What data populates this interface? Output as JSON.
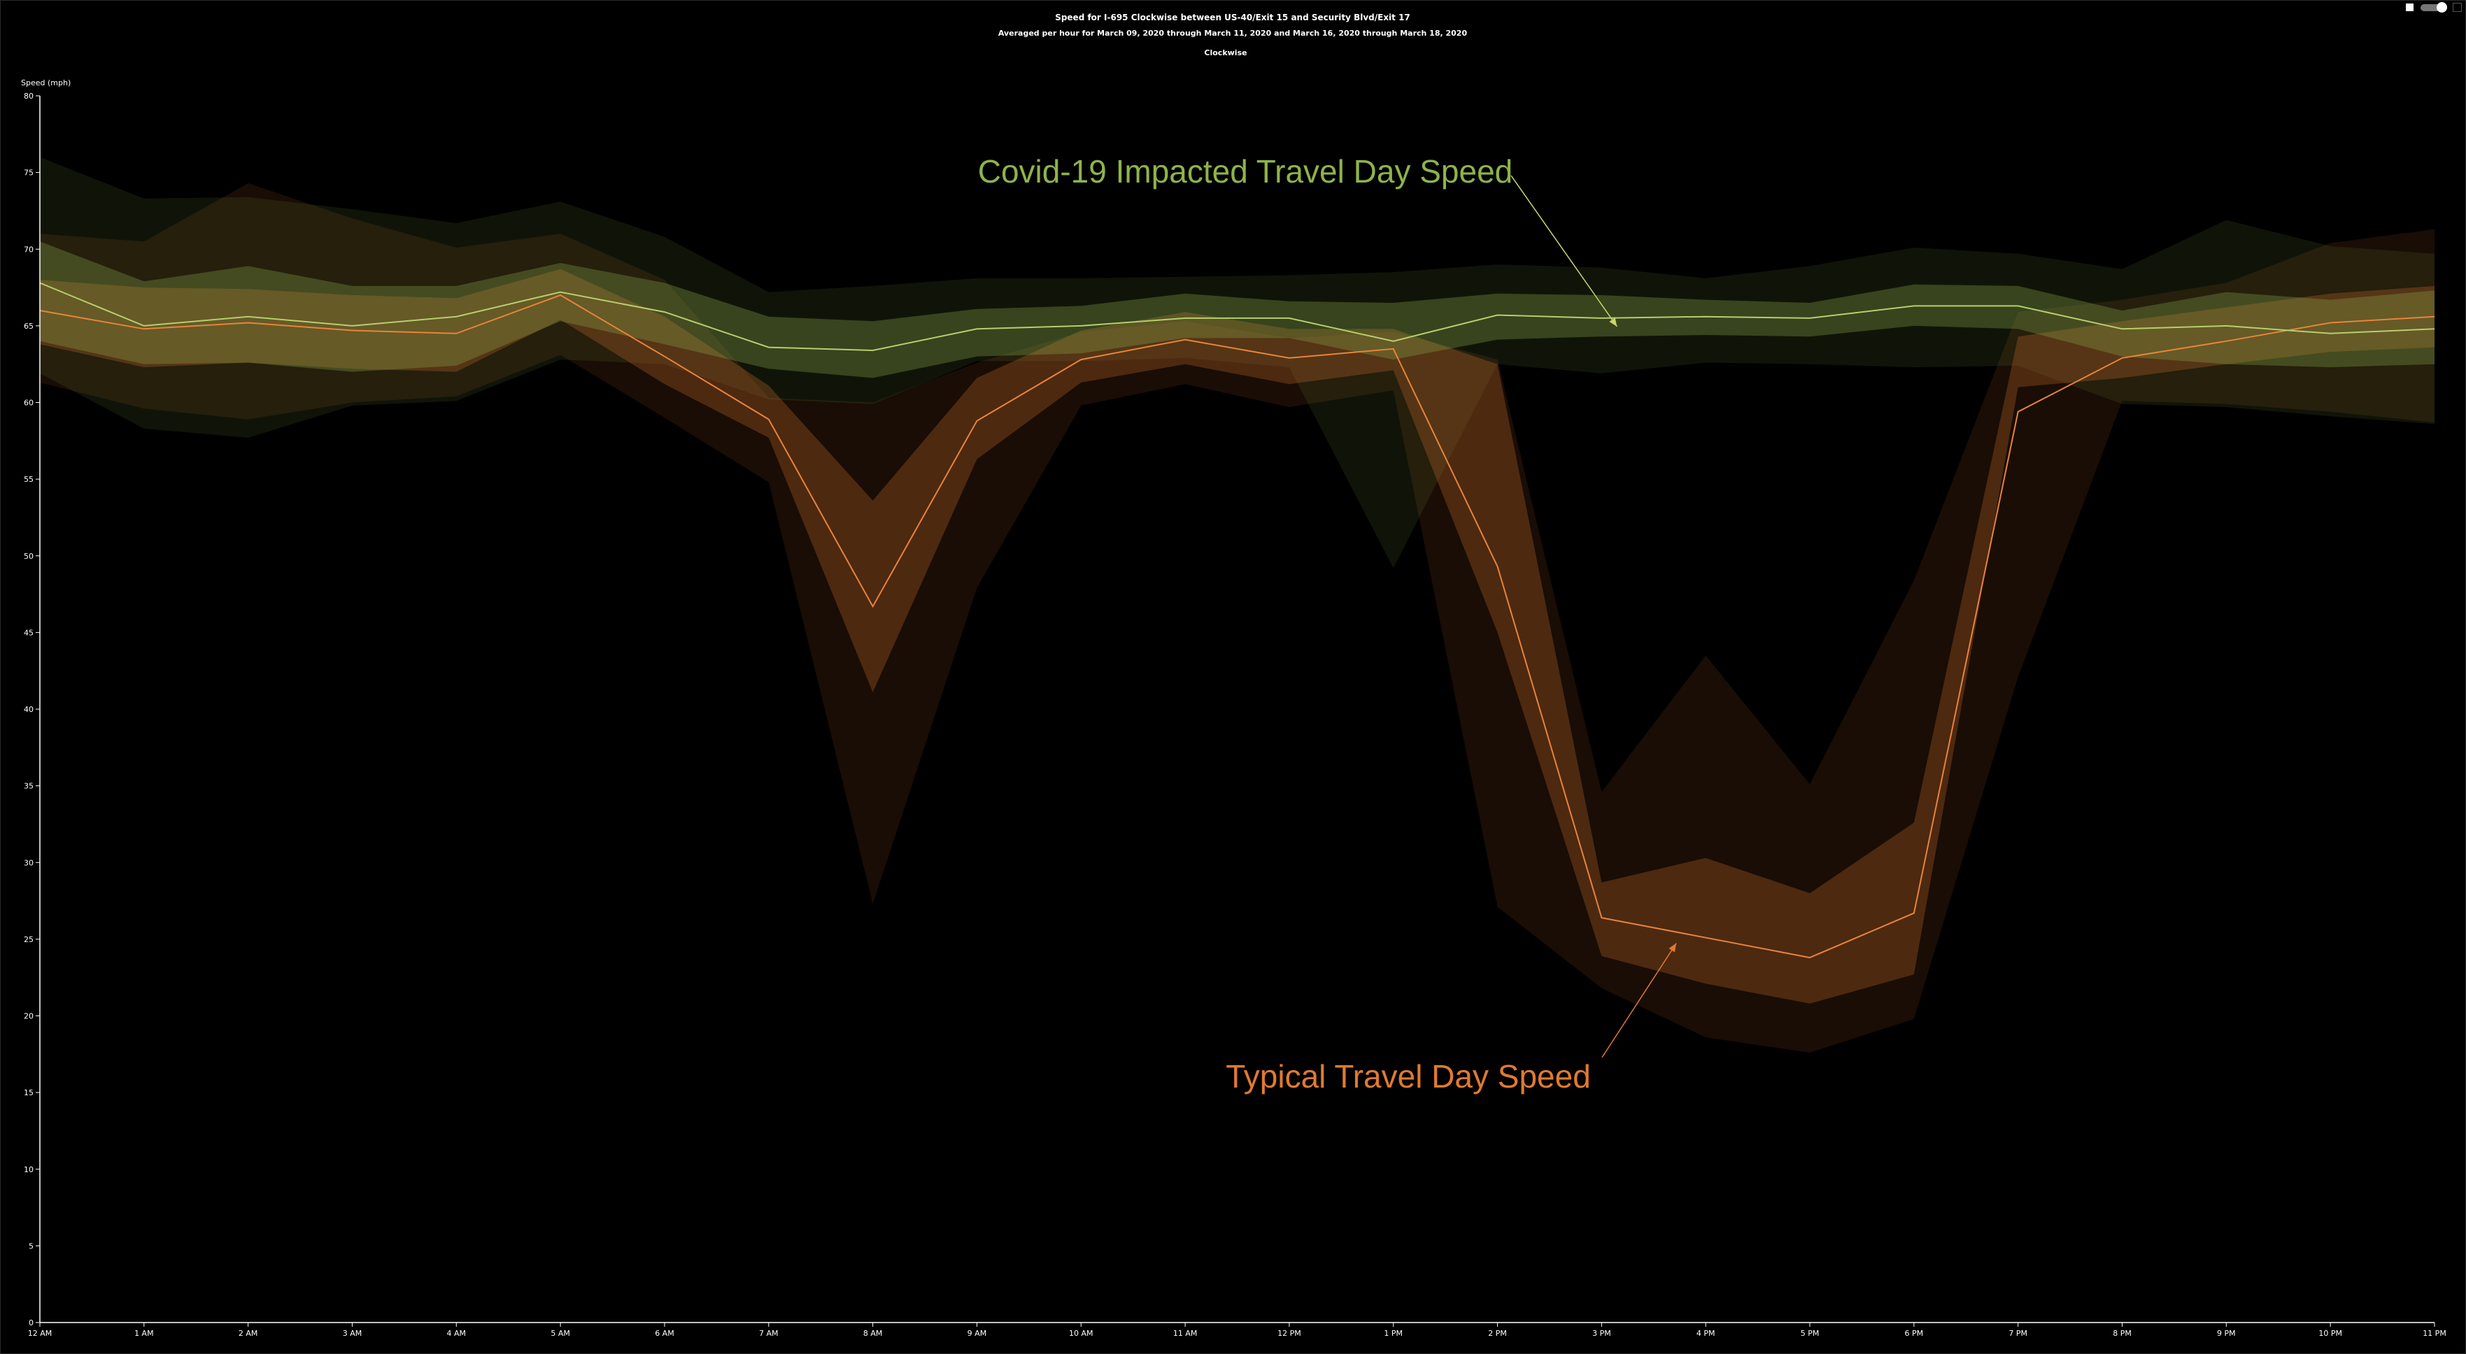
{
  "chart_data": {
    "type": "line",
    "title": "Speed for I-695 Clockwise between US-40/Exit 15 and Security Blvd/Exit 17",
    "subtitle": "Averaged per hour for March 09, 2020 through March 11, 2020 and March 16, 2020 through March 18, 2020",
    "direction_label": "Clockwise",
    "ylabel": "Speed (mph)",
    "xlabel": "",
    "ylim": [
      0,
      80
    ],
    "yticks": [
      0,
      5,
      10,
      15,
      20,
      25,
      30,
      35,
      40,
      45,
      50,
      55,
      60,
      65,
      70,
      75,
      80
    ],
    "categories": [
      "12 AM",
      "1 AM",
      "2 AM",
      "3 AM",
      "4 AM",
      "5 AM",
      "6 AM",
      "7 AM",
      "8 AM",
      "9 AM",
      "10 AM",
      "11 AM",
      "12 PM",
      "1 PM",
      "2 PM",
      "3 PM",
      "4 PM",
      "5 PM",
      "6 PM",
      "7 PM",
      "8 PM",
      "9 PM",
      "10 PM",
      "11 PM"
    ],
    "grid": false,
    "legend": "none",
    "series": [
      {
        "key": "typical",
        "color": "#e8843a",
        "values": [
          66.0,
          64.8,
          65.2,
          64.7,
          64.5,
          67.0,
          63.0,
          58.9,
          46.7,
          58.8,
          62.8,
          64.1,
          62.9,
          63.5,
          49.3,
          26.4,
          25.1,
          23.8,
          26.7,
          59.4,
          62.9,
          64.0,
          65.2,
          65.6
        ],
        "inner_band": {
          "upper": [
            68.0,
            67.5,
            67.4,
            67.0,
            66.8,
            68.7,
            65.6,
            61.1,
            53.6,
            61.6,
            64.7,
            65.9,
            64.8,
            64.8,
            62.5,
            28.7,
            30.3,
            28.0,
            32.6,
            64.3,
            65.3,
            66.2,
            67.1,
            67.6
          ],
          "lower": [
            63.8,
            62.3,
            62.6,
            62.2,
            62.0,
            65.4,
            61.2,
            57.7,
            41.1,
            56.3,
            61.3,
            62.5,
            61.2,
            62.1,
            45.0,
            23.9,
            22.1,
            20.8,
            22.7,
            61.0,
            61.6,
            62.5,
            63.3,
            63.6
          ]
        },
        "outer_band": {
          "upper": [
            71.0,
            70.5,
            74.3,
            72.0,
            70.1,
            71.0,
            68.0,
            60.3,
            60.0,
            62.6,
            64.6,
            65.3,
            64.2,
            64.6,
            62.8,
            34.6,
            43.5,
            35.1,
            48.4,
            65.9,
            66.7,
            67.8,
            70.4,
            71.3
          ],
          "lower": [
            61.3,
            59.6,
            58.9,
            60.0,
            60.4,
            63.1,
            59.0,
            54.8,
            27.3,
            47.9,
            59.8,
            61.2,
            59.7,
            60.8,
            27.1,
            21.8,
            18.6,
            17.6,
            19.8,
            42.1,
            60.1,
            59.9,
            59.4,
            58.7
          ]
        }
      },
      {
        "key": "covid",
        "color": "#b6cf6e",
        "values": [
          67.8,
          65.0,
          65.6,
          65.0,
          65.6,
          67.2,
          65.9,
          63.6,
          63.4,
          64.8,
          65.0,
          65.5,
          65.5,
          64.0,
          65.7,
          65.5,
          65.6,
          65.5,
          66.3,
          66.3,
          64.8,
          65.0,
          64.5,
          64.8
        ],
        "inner_band": {
          "upper": [
            70.5,
            67.9,
            68.9,
            67.6,
            67.6,
            69.1,
            67.8,
            65.6,
            65.3,
            66.1,
            66.3,
            67.1,
            66.6,
            66.5,
            67.1,
            67.0,
            66.7,
            66.5,
            67.7,
            67.6,
            66.0,
            67.2,
            66.7,
            67.3
          ],
          "lower": [
            64.0,
            62.5,
            62.6,
            62.0,
            62.4,
            65.3,
            63.8,
            62.2,
            61.6,
            63.0,
            63.2,
            64.2,
            64.2,
            62.8,
            64.1,
            64.3,
            64.4,
            64.3,
            65.0,
            64.8,
            63.0,
            62.5,
            62.3,
            62.5
          ]
        },
        "outer_band": {
          "upper": [
            76.0,
            73.3,
            73.4,
            72.6,
            71.7,
            73.1,
            70.8,
            67.2,
            67.6,
            68.1,
            68.1,
            68.2,
            68.3,
            68.5,
            69.0,
            68.8,
            68.1,
            68.9,
            70.1,
            69.7,
            68.7,
            71.9,
            70.2,
            69.7
          ],
          "lower": [
            61.9,
            58.3,
            57.7,
            59.8,
            60.1,
            62.8,
            62.5,
            60.2,
            59.9,
            62.7,
            62.7,
            62.9,
            62.3,
            49.2,
            62.5,
            61.9,
            62.6,
            62.5,
            62.3,
            62.4,
            59.9,
            59.7,
            59.1,
            58.6
          ]
        }
      }
    ],
    "annotations": [
      {
        "key": "covid",
        "text": "Covid-19 Impacted Travel Day Speed",
        "color": "#8fb34a",
        "points_to": {
          "x": "3 PM",
          "y": 65.5
        }
      },
      {
        "key": "typical",
        "text": "Typical Travel Day Speed",
        "color": "#e07a30",
        "points_to": {
          "x": "4 PM",
          "y": 25.1
        }
      }
    ]
  }
}
